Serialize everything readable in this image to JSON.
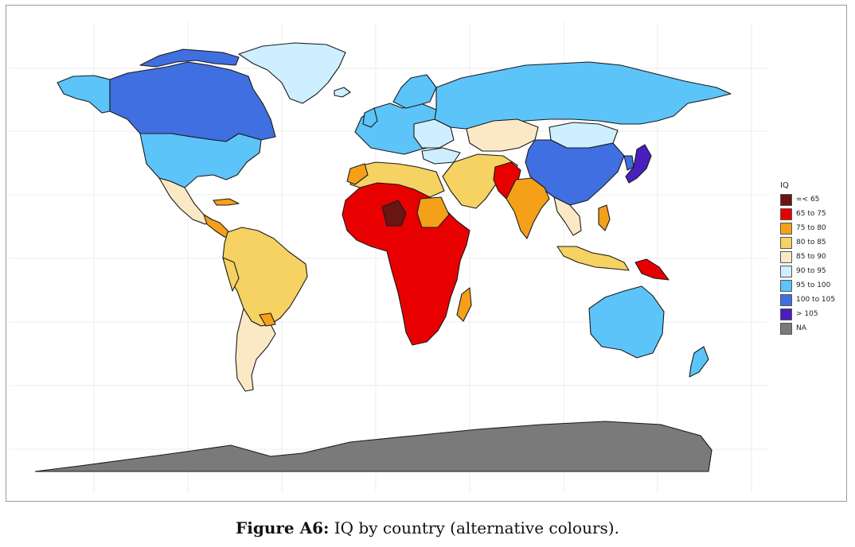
{
  "legend": {
    "title": "IQ",
    "items": [
      {
        "label": "=< 65",
        "color": "#6b1414"
      },
      {
        "label": "65 to 75",
        "color": "#e80000"
      },
      {
        "label": "75 to 80",
        "color": "#f4a019"
      },
      {
        "label": "80 to 85",
        "color": "#f5d261"
      },
      {
        "label": "85 to 90",
        "color": "#fbe9c6"
      },
      {
        "label": "90 to 95",
        "color": "#cdefff"
      },
      {
        "label": "95 to 100",
        "color": "#5cc4f8"
      },
      {
        "label": "100 to 105",
        "color": "#3f6fe0"
      },
      {
        "label": "> 105",
        "color": "#4a1fbf"
      },
      {
        "label": "NA",
        "color": "#7a7a7a"
      }
    ]
  },
  "caption": {
    "label": "Figure A6:",
    "text": " IQ by country (alternative colours)."
  }
}
